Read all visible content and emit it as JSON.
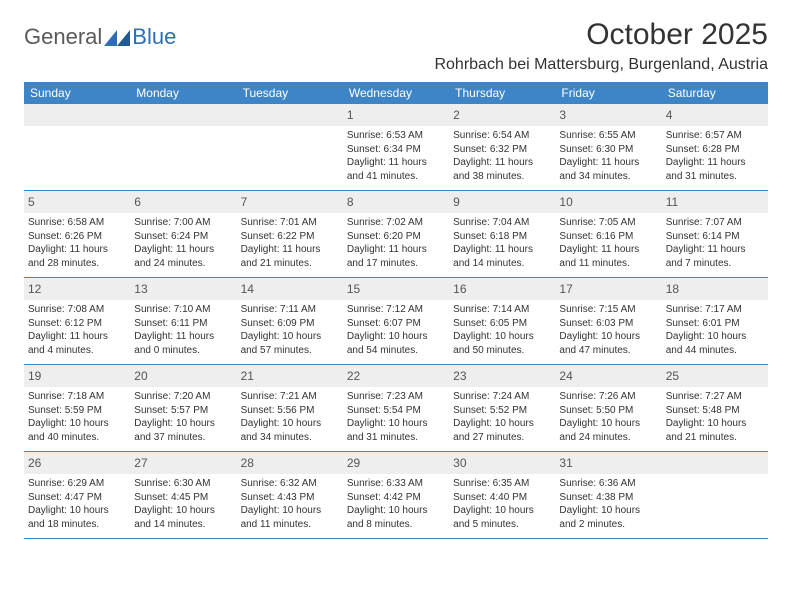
{
  "brand": {
    "general": "General",
    "blue": "Blue"
  },
  "title": "October 2025",
  "location": "Rohrbach bei Mattersburg, Burgenland, Austria",
  "colors": {
    "header_bg": "#3d85c6",
    "header_fg": "#ffffff",
    "rule": "#3d85c6",
    "daynum_bg": "#eeeeee",
    "text": "#333333",
    "logo_general": "#5a5a5a",
    "logo_blue": "#2f6fb0",
    "page_bg": "#ffffff"
  },
  "dayHeaders": [
    "Sunday",
    "Monday",
    "Tuesday",
    "Wednesday",
    "Thursday",
    "Friday",
    "Saturday"
  ],
  "weeks": [
    [
      null,
      null,
      null,
      {
        "n": "1",
        "sr": "Sunrise: 6:53 AM",
        "ss": "Sunset: 6:34 PM",
        "d1": "Daylight: 11 hours",
        "d2": "and 41 minutes."
      },
      {
        "n": "2",
        "sr": "Sunrise: 6:54 AM",
        "ss": "Sunset: 6:32 PM",
        "d1": "Daylight: 11 hours",
        "d2": "and 38 minutes."
      },
      {
        "n": "3",
        "sr": "Sunrise: 6:55 AM",
        "ss": "Sunset: 6:30 PM",
        "d1": "Daylight: 11 hours",
        "d2": "and 34 minutes."
      },
      {
        "n": "4",
        "sr": "Sunrise: 6:57 AM",
        "ss": "Sunset: 6:28 PM",
        "d1": "Daylight: 11 hours",
        "d2": "and 31 minutes."
      }
    ],
    [
      {
        "n": "5",
        "sr": "Sunrise: 6:58 AM",
        "ss": "Sunset: 6:26 PM",
        "d1": "Daylight: 11 hours",
        "d2": "and 28 minutes."
      },
      {
        "n": "6",
        "sr": "Sunrise: 7:00 AM",
        "ss": "Sunset: 6:24 PM",
        "d1": "Daylight: 11 hours",
        "d2": "and 24 minutes."
      },
      {
        "n": "7",
        "sr": "Sunrise: 7:01 AM",
        "ss": "Sunset: 6:22 PM",
        "d1": "Daylight: 11 hours",
        "d2": "and 21 minutes."
      },
      {
        "n": "8",
        "sr": "Sunrise: 7:02 AM",
        "ss": "Sunset: 6:20 PM",
        "d1": "Daylight: 11 hours",
        "d2": "and 17 minutes."
      },
      {
        "n": "9",
        "sr": "Sunrise: 7:04 AM",
        "ss": "Sunset: 6:18 PM",
        "d1": "Daylight: 11 hours",
        "d2": "and 14 minutes."
      },
      {
        "n": "10",
        "sr": "Sunrise: 7:05 AM",
        "ss": "Sunset: 6:16 PM",
        "d1": "Daylight: 11 hours",
        "d2": "and 11 minutes."
      },
      {
        "n": "11",
        "sr": "Sunrise: 7:07 AM",
        "ss": "Sunset: 6:14 PM",
        "d1": "Daylight: 11 hours",
        "d2": "and 7 minutes."
      }
    ],
    [
      {
        "n": "12",
        "sr": "Sunrise: 7:08 AM",
        "ss": "Sunset: 6:12 PM",
        "d1": "Daylight: 11 hours",
        "d2": "and 4 minutes."
      },
      {
        "n": "13",
        "sr": "Sunrise: 7:10 AM",
        "ss": "Sunset: 6:11 PM",
        "d1": "Daylight: 11 hours",
        "d2": "and 0 minutes."
      },
      {
        "n": "14",
        "sr": "Sunrise: 7:11 AM",
        "ss": "Sunset: 6:09 PM",
        "d1": "Daylight: 10 hours",
        "d2": "and 57 minutes."
      },
      {
        "n": "15",
        "sr": "Sunrise: 7:12 AM",
        "ss": "Sunset: 6:07 PM",
        "d1": "Daylight: 10 hours",
        "d2": "and 54 minutes."
      },
      {
        "n": "16",
        "sr": "Sunrise: 7:14 AM",
        "ss": "Sunset: 6:05 PM",
        "d1": "Daylight: 10 hours",
        "d2": "and 50 minutes."
      },
      {
        "n": "17",
        "sr": "Sunrise: 7:15 AM",
        "ss": "Sunset: 6:03 PM",
        "d1": "Daylight: 10 hours",
        "d2": "and 47 minutes."
      },
      {
        "n": "18",
        "sr": "Sunrise: 7:17 AM",
        "ss": "Sunset: 6:01 PM",
        "d1": "Daylight: 10 hours",
        "d2": "and 44 minutes."
      }
    ],
    [
      {
        "n": "19",
        "sr": "Sunrise: 7:18 AM",
        "ss": "Sunset: 5:59 PM",
        "d1": "Daylight: 10 hours",
        "d2": "and 40 minutes."
      },
      {
        "n": "20",
        "sr": "Sunrise: 7:20 AM",
        "ss": "Sunset: 5:57 PM",
        "d1": "Daylight: 10 hours",
        "d2": "and 37 minutes."
      },
      {
        "n": "21",
        "sr": "Sunrise: 7:21 AM",
        "ss": "Sunset: 5:56 PM",
        "d1": "Daylight: 10 hours",
        "d2": "and 34 minutes."
      },
      {
        "n": "22",
        "sr": "Sunrise: 7:23 AM",
        "ss": "Sunset: 5:54 PM",
        "d1": "Daylight: 10 hours",
        "d2": "and 31 minutes."
      },
      {
        "n": "23",
        "sr": "Sunrise: 7:24 AM",
        "ss": "Sunset: 5:52 PM",
        "d1": "Daylight: 10 hours",
        "d2": "and 27 minutes."
      },
      {
        "n": "24",
        "sr": "Sunrise: 7:26 AM",
        "ss": "Sunset: 5:50 PM",
        "d1": "Daylight: 10 hours",
        "d2": "and 24 minutes."
      },
      {
        "n": "25",
        "sr": "Sunrise: 7:27 AM",
        "ss": "Sunset: 5:48 PM",
        "d1": "Daylight: 10 hours",
        "d2": "and 21 minutes."
      }
    ],
    [
      {
        "n": "26",
        "sr": "Sunrise: 6:29 AM",
        "ss": "Sunset: 4:47 PM",
        "d1": "Daylight: 10 hours",
        "d2": "and 18 minutes."
      },
      {
        "n": "27",
        "sr": "Sunrise: 6:30 AM",
        "ss": "Sunset: 4:45 PM",
        "d1": "Daylight: 10 hours",
        "d2": "and 14 minutes."
      },
      {
        "n": "28",
        "sr": "Sunrise: 6:32 AM",
        "ss": "Sunset: 4:43 PM",
        "d1": "Daylight: 10 hours",
        "d2": "and 11 minutes."
      },
      {
        "n": "29",
        "sr": "Sunrise: 6:33 AM",
        "ss": "Sunset: 4:42 PM",
        "d1": "Daylight: 10 hours",
        "d2": "and 8 minutes."
      },
      {
        "n": "30",
        "sr": "Sunrise: 6:35 AM",
        "ss": "Sunset: 4:40 PM",
        "d1": "Daylight: 10 hours",
        "d2": "and 5 minutes."
      },
      {
        "n": "31",
        "sr": "Sunrise: 6:36 AM",
        "ss": "Sunset: 4:38 PM",
        "d1": "Daylight: 10 hours",
        "d2": "and 2 minutes."
      },
      null
    ]
  ]
}
